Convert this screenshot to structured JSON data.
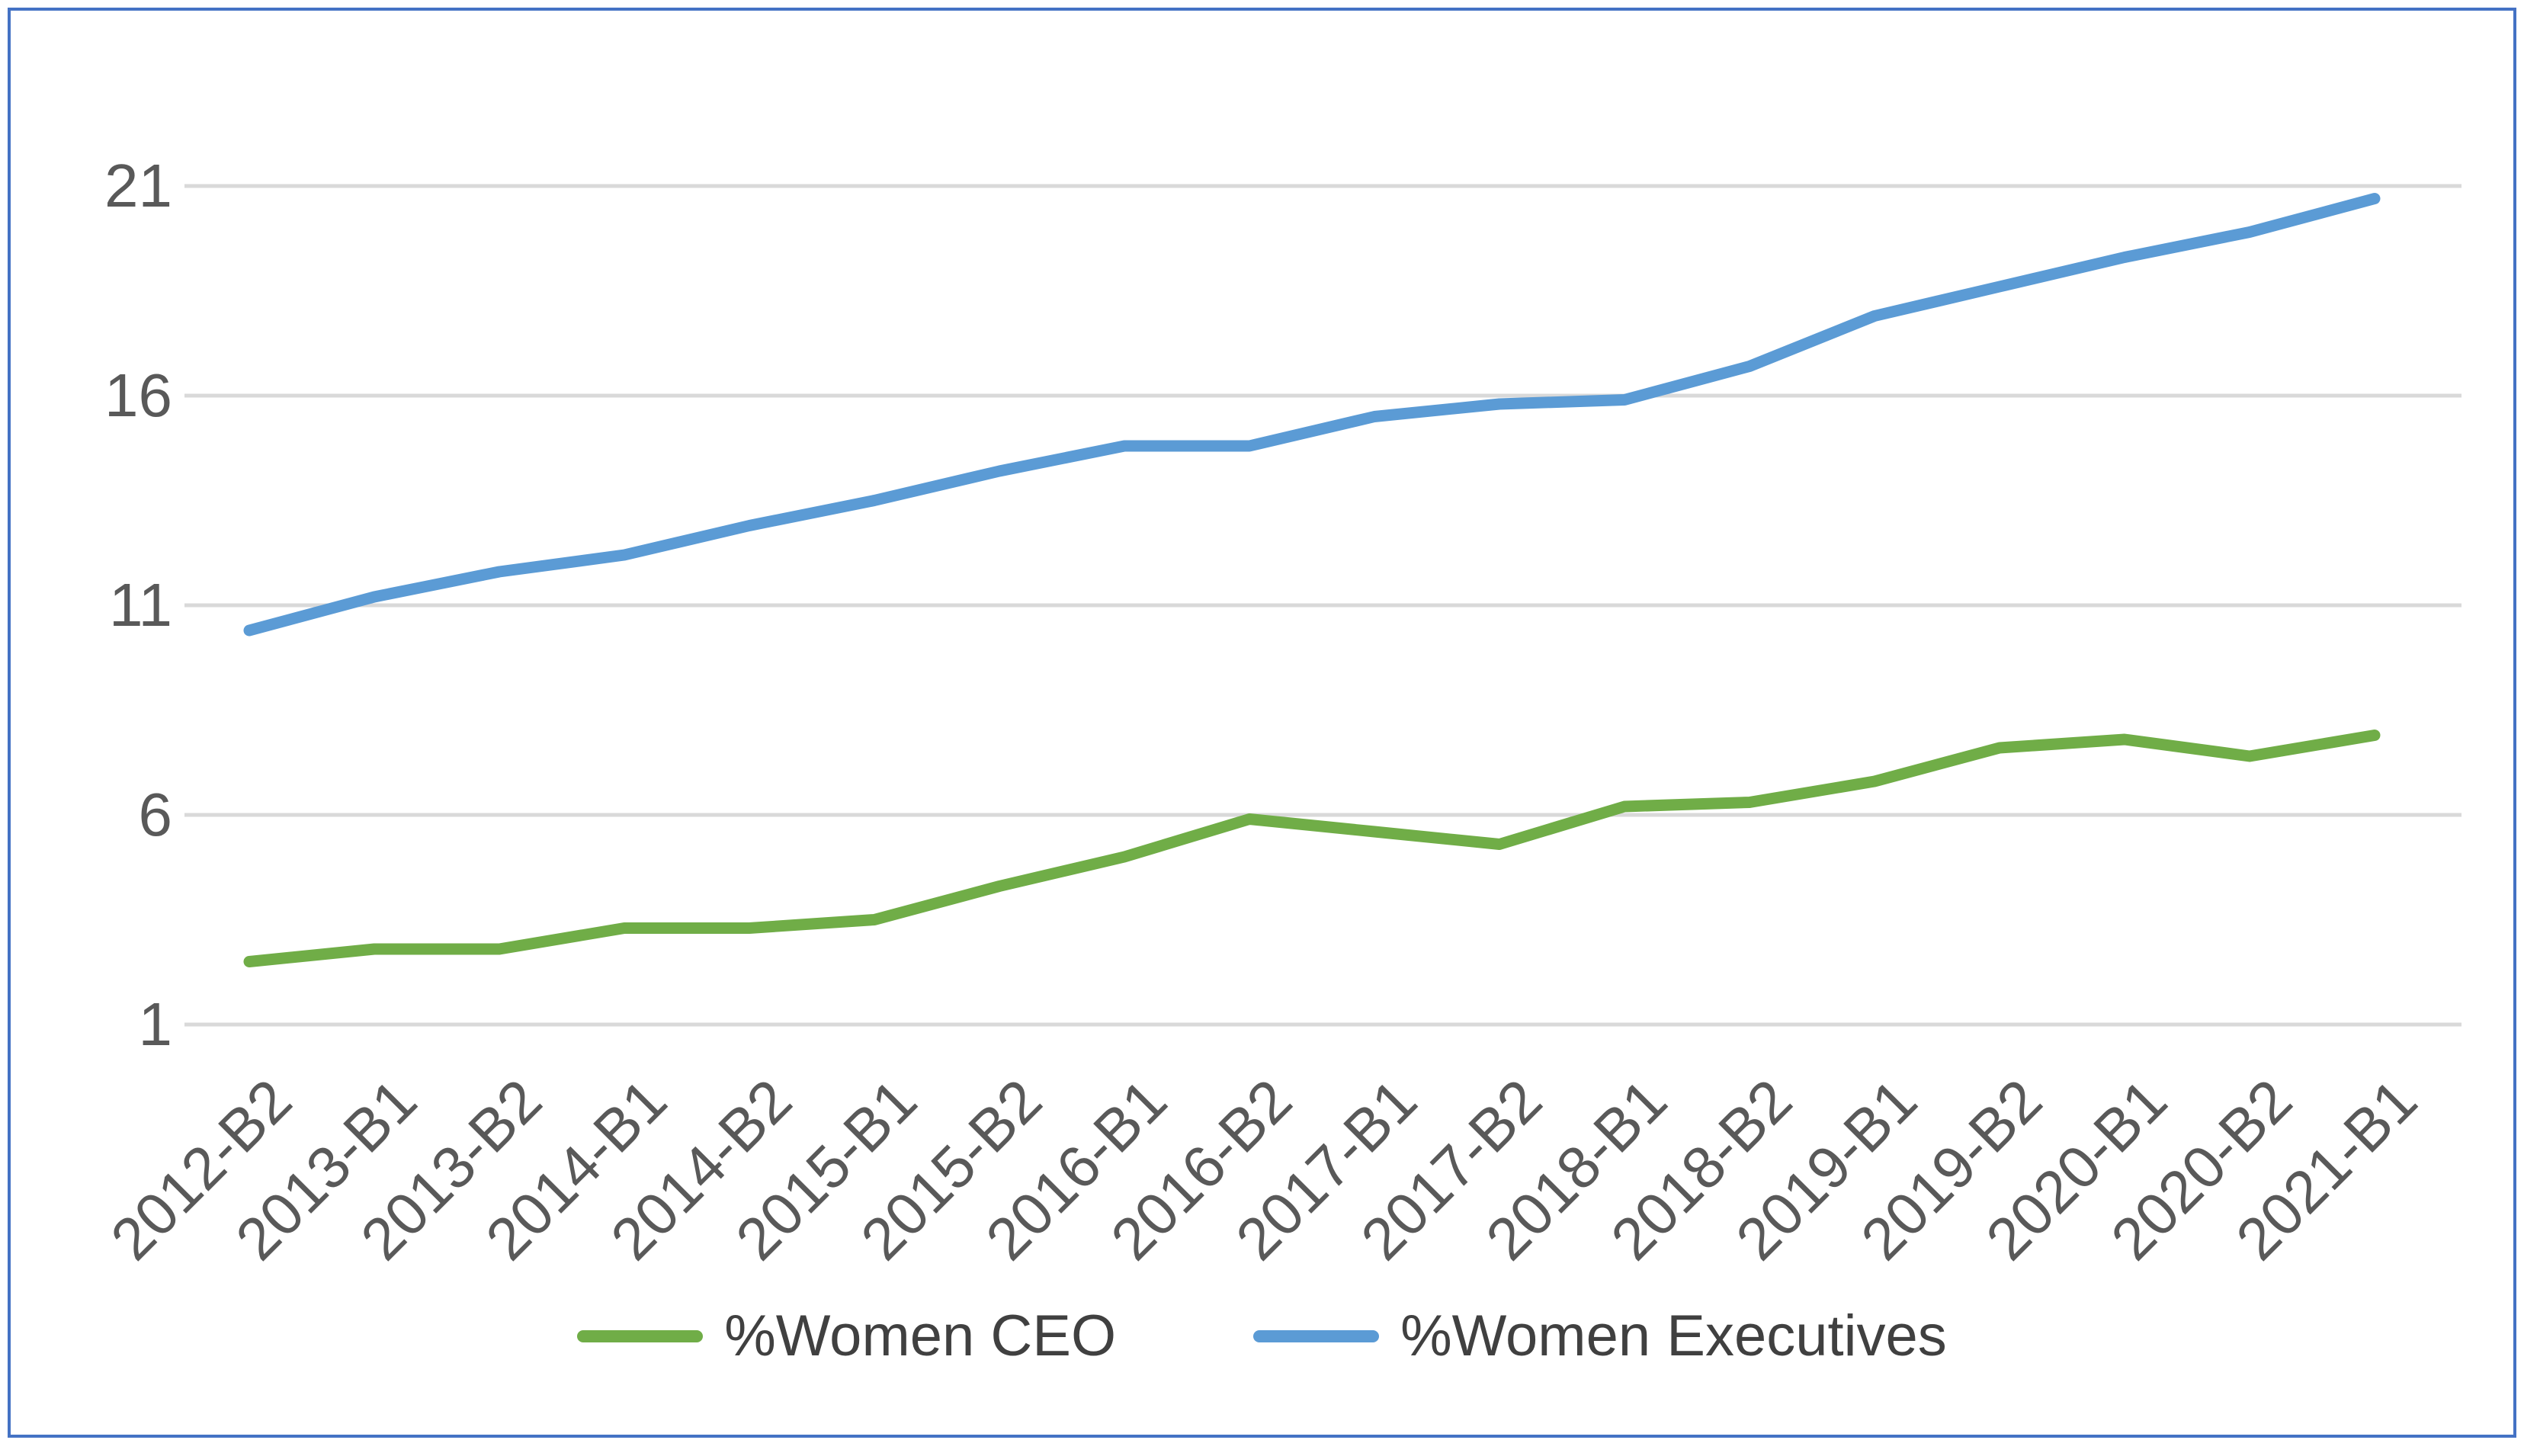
{
  "chart_data": {
    "type": "line",
    "title": "",
    "xlabel": "",
    "ylabel": "",
    "categories": [
      "2012-B2",
      "2013-B1",
      "2013-B2",
      "2014-B1",
      "2014-B2",
      "2015-B1",
      "2015-B2",
      "2016-B1",
      "2016-B2",
      "2017-B1",
      "2017-B2",
      "2018-B1",
      "2018-B2",
      "2019-B1",
      "2019-B2",
      "2020-B1",
      "2020-B2",
      "2021-B1"
    ],
    "series": [
      {
        "name": "%Women CEO",
        "color": "#70AD47",
        "values": [
          2.5,
          2.8,
          2.8,
          3.3,
          3.3,
          3.5,
          4.3,
          5.0,
          5.9,
          5.6,
          5.3,
          6.2,
          6.3,
          6.8,
          7.6,
          7.8,
          7.4,
          7.9
        ]
      },
      {
        "name": "%Women Executives",
        "color": "#5B9BD5",
        "values": [
          10.4,
          11.2,
          11.8,
          12.2,
          12.9,
          13.5,
          14.2,
          14.8,
          14.8,
          15.5,
          15.8,
          15.9,
          16.7,
          17.9,
          18.6,
          19.3,
          19.9,
          20.7
        ]
      }
    ],
    "y_axis": {
      "ticks": [
        1,
        6,
        11,
        16,
        21
      ],
      "min": 1,
      "max": 21
    },
    "grid": true,
    "legend_position": "bottom"
  },
  "styles": {
    "grid_color": "#D9D9D9",
    "tick_label_color": "#595959",
    "legend_text_color": "#404040",
    "frame_border_color": "#4472C4",
    "background_color": "#FFFFFF"
  }
}
